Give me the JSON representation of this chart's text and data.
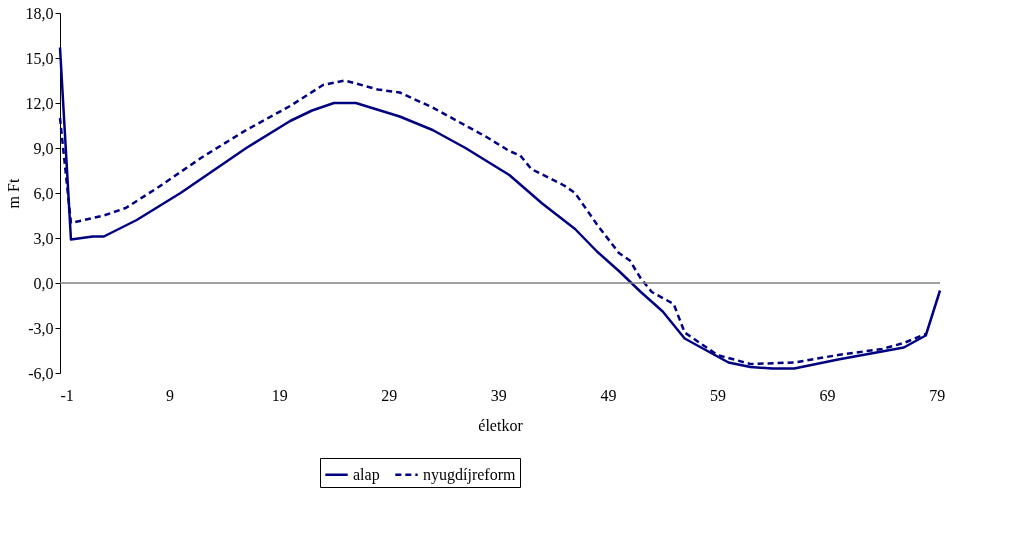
{
  "chart_data": {
    "type": "line",
    "xlabel": "életkor",
    "ylabel": "m Ft",
    "xlim": [
      -1,
      79.3
    ],
    "xticks": [
      -1,
      9,
      19,
      29,
      39,
      49,
      59,
      69,
      79
    ],
    "ylim": [
      -6,
      18
    ],
    "yticks": [
      {
        "value": -6,
        "label": "-6,0"
      },
      {
        "value": -3,
        "label": "-3,0"
      },
      {
        "value": 0,
        "label": "0,0"
      },
      {
        "value": 3,
        "label": "3,0"
      },
      {
        "value": 6,
        "label": "6,0"
      },
      {
        "value": 9,
        "label": "9,0"
      },
      {
        "value": 12,
        "label": "12,0"
      },
      {
        "value": 15,
        "label": "15,0"
      },
      {
        "value": 18,
        "label": "18,0"
      }
    ],
    "grid": false,
    "legend": "bottom",
    "marker": "none",
    "ref_lines": [
      {
        "axis": "y",
        "value": 0,
        "color": "#808080",
        "line_style": "solid"
      }
    ],
    "series": [
      {
        "name": "alap",
        "color": "#000080",
        "line_style": "solid",
        "x": [
          -1,
          0,
          2,
          3,
          6,
          10,
          13,
          16,
          20,
          22,
          24,
          26,
          30,
          33,
          36,
          40,
          43,
          46,
          48,
          50,
          52,
          54,
          56,
          58,
          60,
          62,
          64,
          66,
          70,
          73,
          76,
          78,
          79.3
        ],
        "values": [
          15.7,
          2.9,
          3.1,
          3.1,
          4.2,
          6.0,
          7.5,
          9.0,
          10.8,
          11.5,
          12.0,
          12.0,
          11.1,
          10.2,
          9.0,
          7.2,
          5.3,
          3.6,
          2.1,
          0.8,
          -0.6,
          -1.9,
          -3.7,
          -4.5,
          -5.3,
          -5.6,
          -5.7,
          -5.7,
          -5.1,
          -4.7,
          -4.3,
          -3.5,
          -0.5
        ]
      },
      {
        "name": "nyugdíjreform",
        "color": "#000080",
        "line_style": "dashed",
        "x": [
          -1,
          0,
          3,
          5,
          8,
          12,
          16,
          20,
          23,
          25,
          28,
          30,
          33,
          36,
          38,
          40,
          41,
          42,
          45,
          46,
          48,
          50,
          51,
          52,
          53,
          55,
          56,
          59,
          62,
          66,
          70,
          74,
          76,
          78
        ],
        "values": [
          11.0,
          4.0,
          4.5,
          5.0,
          6.4,
          8.4,
          10.2,
          11.8,
          13.2,
          13.5,
          12.9,
          12.7,
          11.7,
          10.5,
          9.7,
          8.8,
          8.5,
          7.6,
          6.5,
          6.0,
          3.9,
          2.0,
          1.5,
          0.3,
          -0.6,
          -1.4,
          -3.3,
          -4.8,
          -5.4,
          -5.3,
          -4.8,
          -4.4,
          -4.0,
          -3.4
        ]
      }
    ]
  }
}
